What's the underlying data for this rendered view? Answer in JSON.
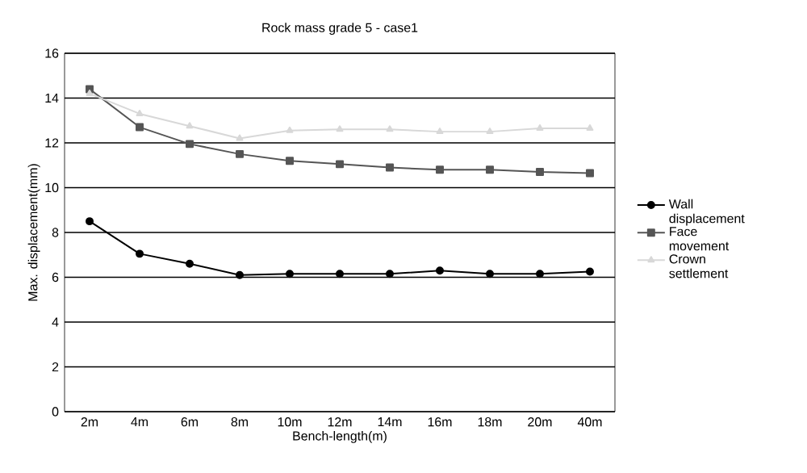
{
  "chart_data": {
    "type": "line",
    "title": "Rock mass grade 5 - case1",
    "xlabel": "Bench-length(m)",
    "ylabel": "Max. displacement(mm)",
    "categories": [
      "2m",
      "4m",
      "6m",
      "8m",
      "10m",
      "12m",
      "14m",
      "16m",
      "18m",
      "20m",
      "40m"
    ],
    "series": [
      {
        "name": "Wall displacement",
        "color": "#000000",
        "marker": "circle",
        "values": [
          8.5,
          7.05,
          6.6,
          6.1,
          6.15,
          6.15,
          6.15,
          6.3,
          6.15,
          6.15,
          6.25
        ]
      },
      {
        "name": "Face movement",
        "color": "#555555",
        "marker": "square",
        "values": [
          14.4,
          12.7,
          11.95,
          11.5,
          11.2,
          11.05,
          10.9,
          10.8,
          10.8,
          10.7,
          10.65
        ]
      },
      {
        "name": "Crown settlement",
        "color": "#d8d8d8",
        "marker": "triangle",
        "values": [
          14.2,
          13.3,
          12.75,
          12.2,
          12.55,
          12.6,
          12.6,
          12.5,
          12.5,
          12.65,
          12.65
        ]
      }
    ],
    "ylim": [
      0,
      16
    ],
    "yticks": [
      0,
      2,
      4,
      6,
      8,
      10,
      12,
      14,
      16
    ],
    "grid": "y",
    "legend": "right",
    "line_style": "solid"
  }
}
